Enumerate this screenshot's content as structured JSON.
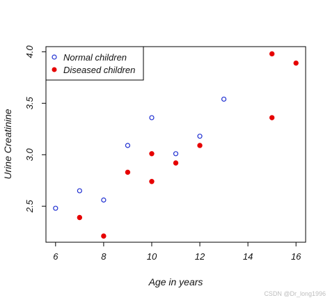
{
  "chart_data": {
    "type": "scatter",
    "title": "",
    "xlabel": "Age in years",
    "ylabel": "Urine Creatinine",
    "xlim": [
      5.6,
      16.4
    ],
    "ylim": [
      2.15,
      4.05
    ],
    "xticks": [
      "6",
      "8",
      "10",
      "12",
      "14",
      "16"
    ],
    "yticks": [
      "2.5",
      "3.0",
      "3.5",
      "4.0"
    ],
    "grid": false,
    "legend": "top-left",
    "series": [
      {
        "name": "Normal children",
        "marker": "open-circle",
        "color": "#1f2fd1",
        "points": [
          {
            "x": 6,
            "y": 2.48
          },
          {
            "x": 7,
            "y": 2.65
          },
          {
            "x": 8,
            "y": 2.56
          },
          {
            "x": 9,
            "y": 3.09
          },
          {
            "x": 10,
            "y": 3.36
          },
          {
            "x": 11,
            "y": 3.01
          },
          {
            "x": 12,
            "y": 3.18
          },
          {
            "x": 13,
            "y": 3.54
          }
        ]
      },
      {
        "name": "Diseased children",
        "marker": "filled-circle",
        "color": "#e60000",
        "points": [
          {
            "x": 7,
            "y": 2.39
          },
          {
            "x": 8,
            "y": 2.21
          },
          {
            "x": 9,
            "y": 2.83
          },
          {
            "x": 10,
            "y": 3.01
          },
          {
            "x": 10,
            "y": 2.74
          },
          {
            "x": 11,
            "y": 2.92
          },
          {
            "x": 12,
            "y": 3.09
          },
          {
            "x": 15,
            "y": 3.98
          },
          {
            "x": 15,
            "y": 3.36
          },
          {
            "x": 16,
            "y": 3.89
          }
        ]
      }
    ]
  },
  "watermark": "CSDN @Dr_long1996"
}
